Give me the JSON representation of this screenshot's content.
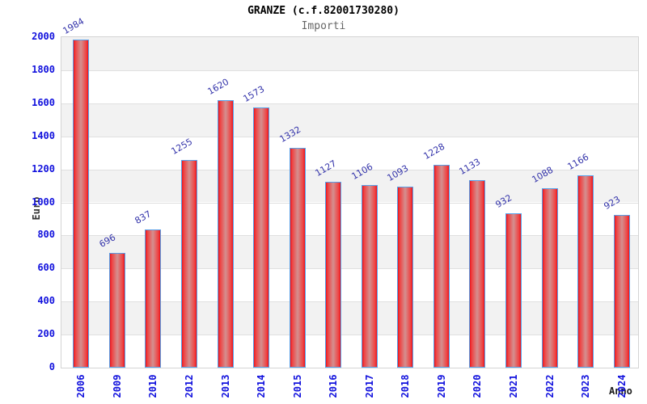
{
  "chart_data": {
    "type": "bar",
    "title": "GRANZE (c.f.82001730280)",
    "subtitle": "Importi",
    "xlabel": "Anno",
    "ylabel": "Euro",
    "categories": [
      "2006",
      "2009",
      "2010",
      "2012",
      "2013",
      "2014",
      "2015",
      "2016",
      "2017",
      "2018",
      "2019",
      "2020",
      "2021",
      "2022",
      "2023",
      "2024"
    ],
    "values": [
      1984,
      696,
      837,
      1255,
      1620,
      1573,
      1332,
      1127,
      1106,
      1093,
      1228,
      1133,
      932,
      1088,
      1166,
      923
    ],
    "ylim": [
      0,
      2000
    ],
    "yticks": [
      0,
      200,
      400,
      600,
      800,
      1000,
      1200,
      1400,
      1600,
      1800,
      2000
    ],
    "grid": "horizontal-bands",
    "legend": "none",
    "bar_label_rotation_deg": -30,
    "x_tick_rotation_deg": -90,
    "colors": {
      "bar_edge_red": "#e8131b",
      "bar_center_pink": "#d49090",
      "bar_border_blue": "#58a0e8",
      "axis_tick_blue": "#1111dd",
      "value_label_blue": "#3333aa",
      "band_gray": "#f2f2f2",
      "gridline_gray": "#e0e0e0",
      "plot_border_gray": "#d4d4d4",
      "title_black": "#000000",
      "subtitle_gray": "#666666",
      "axis_title_dark": "#333333"
    }
  }
}
